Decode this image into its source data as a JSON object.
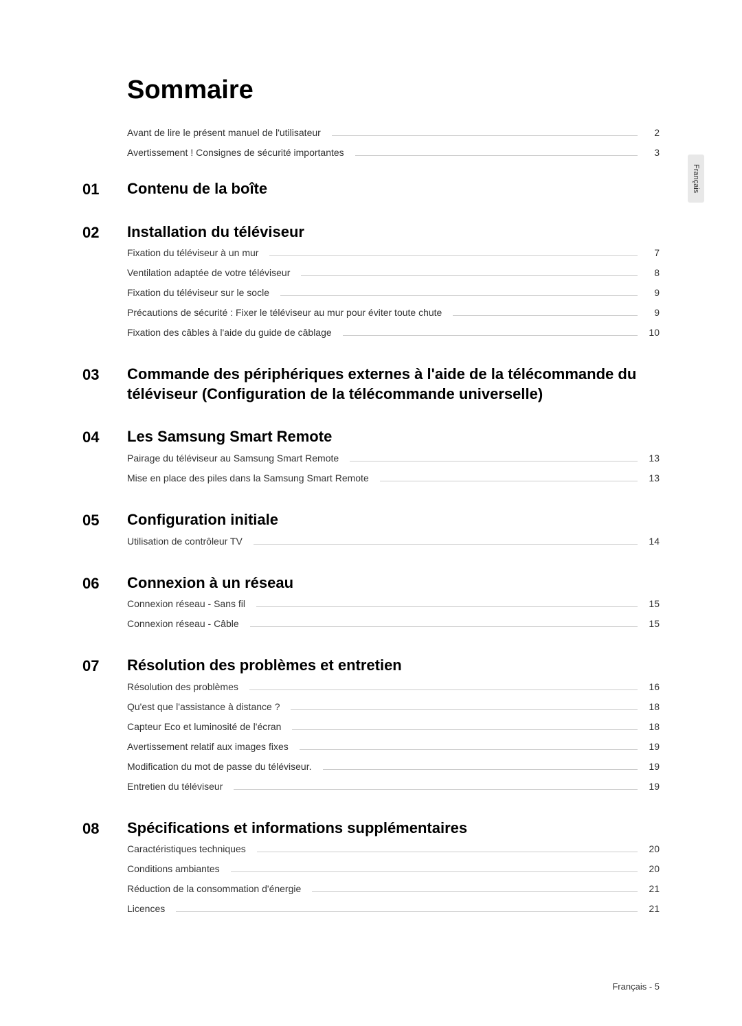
{
  "title": "Sommaire",
  "side_tab": "Français",
  "footer": "Français - 5",
  "colors": {
    "text": "#000000",
    "body_text": "#333333",
    "leader": "#cccccc",
    "tab_bg": "#e8e8e8",
    "page_bg": "#ffffff"
  },
  "typography": {
    "title_size": 38,
    "section_number_size": 22,
    "section_title_size": 22,
    "entry_size": 14,
    "footer_size": 13,
    "tab_size": 11
  },
  "intro_entries": [
    {
      "label": "Avant de lire le présent manuel de l'utilisateur",
      "page": "2"
    },
    {
      "label": "Avertissement ! Consignes de sécurité importantes",
      "page": "3"
    }
  ],
  "sections": [
    {
      "number": "01",
      "title": "Contenu de la boîte",
      "entries": []
    },
    {
      "number": "02",
      "title": "Installation du téléviseur",
      "entries": [
        {
          "label": "Fixation du téléviseur à un mur",
          "page": "7"
        },
        {
          "label": "Ventilation adaptée de votre téléviseur",
          "page": "8"
        },
        {
          "label": "Fixation du téléviseur sur le socle",
          "page": "9"
        },
        {
          "label": "Précautions de sécurité : Fixer le téléviseur au mur pour éviter toute chute",
          "page": "9"
        },
        {
          "label": "Fixation des câbles à l'aide du guide de câblage",
          "page": "10"
        }
      ]
    },
    {
      "number": "03",
      "title": "Commande des périphériques externes à l'aide de la télécommande du téléviseur (Configuration de la télécommande universelle)",
      "entries": []
    },
    {
      "number": "04",
      "title": "Les Samsung Smart Remote",
      "entries": [
        {
          "label": "Pairage du téléviseur au Samsung Smart Remote",
          "page": "13"
        },
        {
          "label": "Mise en place des piles dans la Samsung Smart Remote",
          "page": "13"
        }
      ]
    },
    {
      "number": "05",
      "title": "Configuration initiale",
      "entries": [
        {
          "label": "Utilisation de contrôleur TV",
          "page": "14"
        }
      ]
    },
    {
      "number": "06",
      "title": "Connexion à un réseau",
      "entries": [
        {
          "label": "Connexion réseau - Sans fil",
          "page": "15"
        },
        {
          "label": "Connexion réseau - Câble",
          "page": "15"
        }
      ]
    },
    {
      "number": "07",
      "title": "Résolution des problèmes et entretien",
      "entries": [
        {
          "label": "Résolution des problèmes",
          "page": "16"
        },
        {
          "label": "Qu'est que l'assistance à distance ?",
          "page": "18"
        },
        {
          "label": "Capteur Eco et luminosité de l'écran",
          "page": "18"
        },
        {
          "label": "Avertissement relatif aux images fixes",
          "page": "19"
        },
        {
          "label": "Modification du mot de passe du téléviseur.",
          "page": "19"
        },
        {
          "label": "Entretien du téléviseur",
          "page": "19"
        }
      ]
    },
    {
      "number": "08",
      "title": "Spécifications et informations supplémentaires",
      "entries": [
        {
          "label": "Caractéristiques techniques",
          "page": "20"
        },
        {
          "label": "Conditions ambiantes",
          "page": "20"
        },
        {
          "label": "Réduction de la consommation d'énergie",
          "page": "21"
        },
        {
          "label": "Licences",
          "page": "21"
        }
      ]
    }
  ]
}
